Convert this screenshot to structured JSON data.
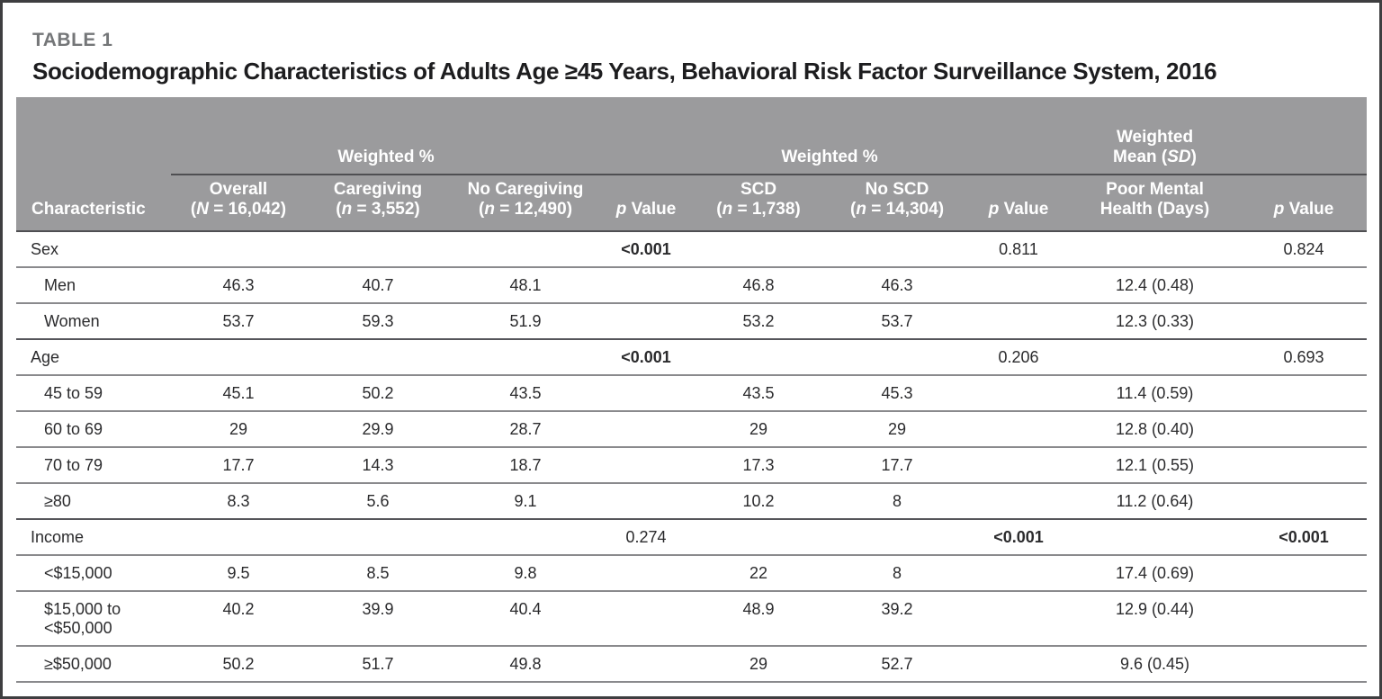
{
  "caption": {
    "label": "TABLE 1",
    "title": "Sociodemographic Characteristics of Adults Age ≥45 Years, Behavioral Risk Factor Surveillance System, 2016"
  },
  "table": {
    "spanners": [
      {
        "label": "Weighted %"
      },
      {
        "label": "Weighted %"
      },
      {
        "line1": "Weighted",
        "mean_pre": "Mean (",
        "mean_it": "SD",
        "mean_post": ")"
      }
    ],
    "columns": [
      {
        "line1": "",
        "l2pre": "Characteristic",
        "l2it": "",
        "l2post": ""
      },
      {
        "line1": "Overall",
        "l2pre": "(",
        "l2it": "N",
        "l2post": " = 16,042)"
      },
      {
        "line1": "Caregiving",
        "l2pre": "(",
        "l2it": "n",
        "l2post": " = 3,552)"
      },
      {
        "line1": "No Caregiving",
        "l2pre": "(",
        "l2it": "n",
        "l2post": " = 12,490)"
      },
      {
        "line1": "",
        "l2pre": "",
        "l2it": "p",
        "l2post": " Value"
      },
      {
        "line1": "SCD",
        "l2pre": "(",
        "l2it": "n",
        "l2post": " = 1,738)"
      },
      {
        "line1": "No SCD",
        "l2pre": "(",
        "l2it": "n",
        "l2post": " = 14,304)"
      },
      {
        "line1": "",
        "l2pre": "",
        "l2it": "p",
        "l2post": " Value"
      },
      {
        "line1": "Poor Mental",
        "l2pre": "Health (Days)",
        "l2it": "",
        "l2post": ""
      },
      {
        "line1": "",
        "l2pre": "",
        "l2it": "p",
        "l2post": " Value"
      }
    ],
    "rows": [
      {
        "label": "Sex",
        "section": true,
        "cells": [
          "",
          "",
          "",
          "<0.001",
          "",
          "",
          "0.811",
          "",
          "0.824"
        ],
        "bold": [
          3
        ]
      },
      {
        "label": "Men",
        "section": false,
        "cells": [
          "46.3",
          "40.7",
          "48.1",
          "",
          "46.8",
          "46.3",
          "",
          "12.4 (0.48)",
          ""
        ],
        "bold": []
      },
      {
        "label": "Women",
        "section": false,
        "cells": [
          "53.7",
          "59.3",
          "51.9",
          "",
          "53.2",
          "53.7",
          "",
          "12.3 (0.33)",
          ""
        ],
        "bold": []
      },
      {
        "label": "Age",
        "section": true,
        "cells": [
          "",
          "",
          "",
          "<0.001",
          "",
          "",
          "0.206",
          "",
          "0.693"
        ],
        "bold": [
          3
        ]
      },
      {
        "label": "45 to 59",
        "section": false,
        "cells": [
          "45.1",
          "50.2",
          "43.5",
          "",
          "43.5",
          "45.3",
          "",
          "11.4 (0.59)",
          ""
        ],
        "bold": []
      },
      {
        "label": "60 to 69",
        "section": false,
        "cells": [
          "29",
          "29.9",
          "28.7",
          "",
          "29",
          "29",
          "",
          "12.8 (0.40)",
          ""
        ],
        "bold": []
      },
      {
        "label": "70 to 79",
        "section": false,
        "cells": [
          "17.7",
          "14.3",
          "18.7",
          "",
          "17.3",
          "17.7",
          "",
          "12.1 (0.55)",
          ""
        ],
        "bold": []
      },
      {
        "label": "≥80",
        "section": false,
        "cells": [
          "8.3",
          "5.6",
          "9.1",
          "",
          "10.2",
          "8",
          "",
          "11.2 (0.64)",
          ""
        ],
        "bold": []
      },
      {
        "label": "Income",
        "section": true,
        "cells": [
          "",
          "",
          "",
          "0.274",
          "",
          "",
          "<0.001",
          "",
          "<0.001"
        ],
        "bold": [
          6,
          8
        ]
      },
      {
        "label": "<$15,000",
        "section": false,
        "cells": [
          "9.5",
          "8.5",
          "9.8",
          "",
          "22",
          "8",
          "",
          "17.4 (0.69)",
          ""
        ],
        "bold": []
      },
      {
        "label": "$15,000 to\n<$50,000",
        "section": false,
        "cells": [
          "40.2",
          "39.9",
          "40.4",
          "",
          "48.9",
          "39.2",
          "",
          "12.9 (0.44)",
          ""
        ],
        "bold": []
      },
      {
        "label": "≥$50,000",
        "section": false,
        "cells": [
          "50.2",
          "51.7",
          "49.8",
          "",
          "29",
          "52.7",
          "",
          "9.6 (0.45)",
          ""
        ],
        "bold": []
      }
    ]
  },
  "colors": {
    "header_bg": "#9b9b9d",
    "header_text": "#ffffff",
    "frame_border": "#3e3e40",
    "section_line": "#55555a",
    "row_line": "#8a8a8d",
    "title_text": "#1d1d1f",
    "label_text": "#747678",
    "body_text": "#2b2b2d"
  }
}
